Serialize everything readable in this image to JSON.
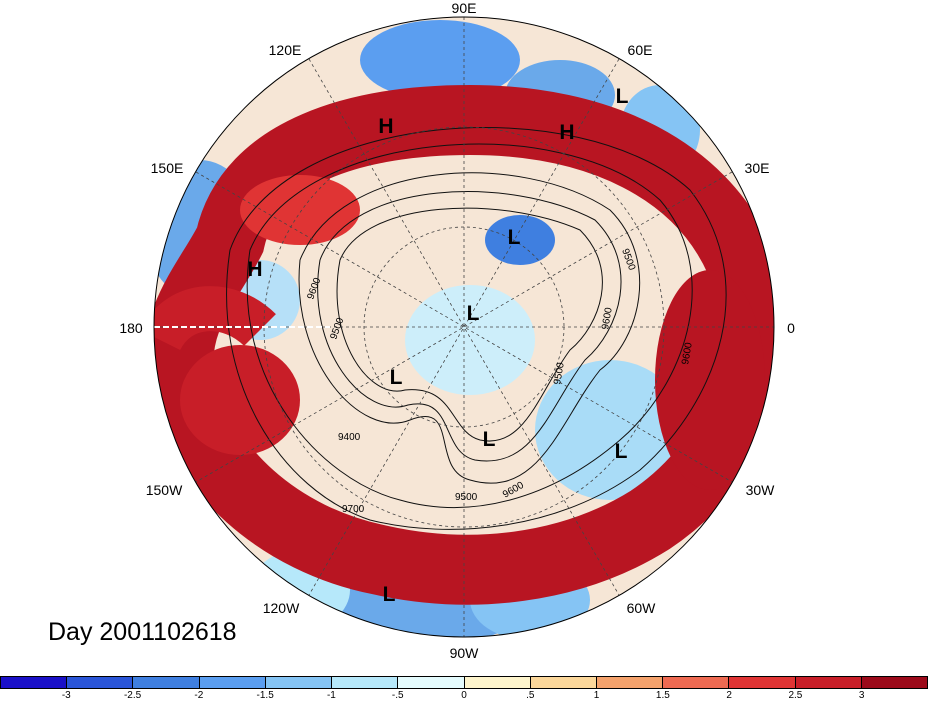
{
  "map": {
    "longitude_labels": {
      "lon_90e": "90E",
      "lon_120e": "120E",
      "lon_60e": "60E",
      "lon_150e": "150E",
      "lon_30e": "30E",
      "lon_180": "180",
      "lon_0": "0",
      "lon_150w": "150W",
      "lon_30w": "30W",
      "lon_120w": "120W",
      "lon_60w": "60W",
      "lon_90w": "90W"
    },
    "pressure_centers": [
      "H",
      "H",
      "H",
      "L",
      "L",
      "L",
      "L",
      "L",
      "L",
      "L"
    ],
    "contour_labels": [
      "9600",
      "9500",
      "9500",
      "9400",
      "9500",
      "9600",
      "9700",
      "9600",
      "9600",
      "9500"
    ],
    "date_label": "Day 2001102618"
  },
  "colorbar": {
    "ticks": [
      "-3",
      "-2.5",
      "-2",
      "-1.5",
      "-1",
      "-.5",
      "0",
      ".5",
      "1",
      "1.5",
      "2",
      "2.5",
      "3"
    ],
    "colors": [
      "#1a10c8",
      "#2a55d8",
      "#3f7fe0",
      "#5b9ef0",
      "#85c4f4",
      "#b6e8fa",
      "#e4fbfd",
      "#fdf4cc",
      "#fbd79b",
      "#f4a26c",
      "#ee6a52",
      "#e03434",
      "#c81e28",
      "#9c0a1a"
    ]
  }
}
